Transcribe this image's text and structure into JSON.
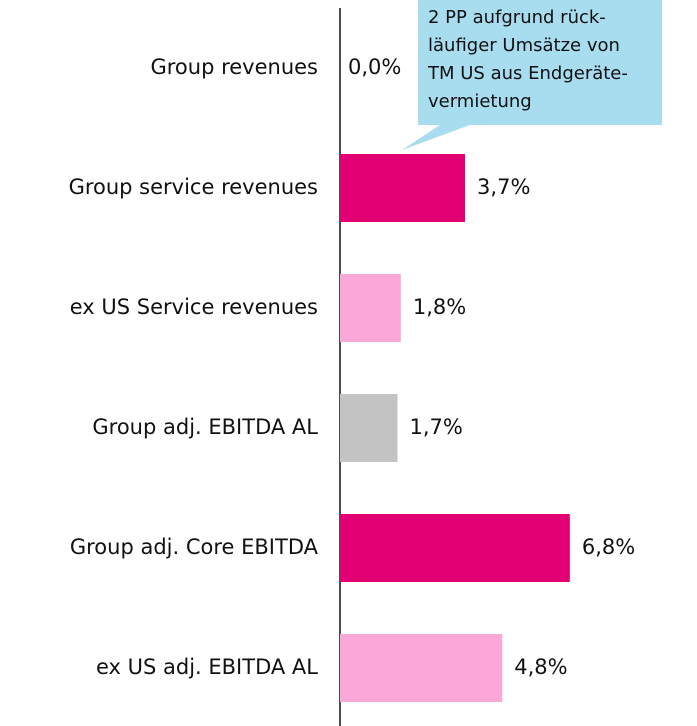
{
  "chart_data": {
    "type": "bar",
    "orientation": "horizontal",
    "categories": [
      "Group revenues",
      "Group service revenues",
      "ex US Service revenues",
      "Group adj. EBITDA AL",
      "Group adj. Core EBITDA",
      "ex US adj. EBITDA AL"
    ],
    "values": [
      0.0,
      3.7,
      1.8,
      1.7,
      6.8,
      4.8
    ],
    "value_labels": [
      "0,0%",
      "3,7%",
      "1,8%",
      "1,7%",
      "6,8%",
      "4,8%"
    ],
    "colors": [
      "#e20074",
      "#e20074",
      "#fba8d8",
      "#c3c3c3",
      "#e20074",
      "#fba8d8"
    ],
    "annotation": {
      "lines": [
        "2 PP aufgrund rück-",
        "läufiger Umsätze von",
        "TM US aus Endgeräte-",
        "vermietung"
      ],
      "color": "#a8dcef"
    }
  }
}
